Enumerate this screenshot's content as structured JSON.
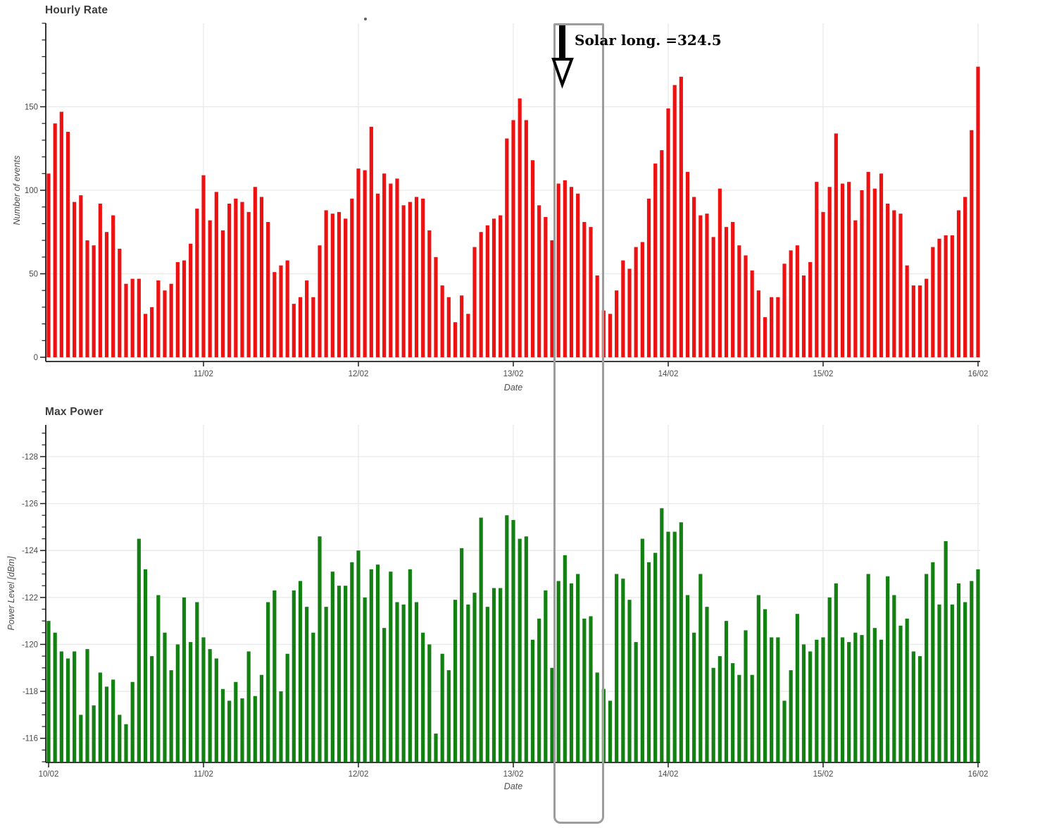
{
  "annotation": {
    "label": "Solar long. =324.5",
    "arrow_icon": "down-arrow",
    "highlight_border_color": "#9d9d9d"
  },
  "style": {
    "grid_color": "#e9e9e9",
    "axis_color": "#1f1f1f",
    "tick_text_color": "#4a4a4a"
  },
  "chart_data": [
    {
      "type": "bar",
      "title": "Hourly Rate",
      "xlabel": "Date",
      "ylabel": "Number of events",
      "bar_color": "#ee1111",
      "ylim": [
        0,
        200
      ],
      "yticks_major": [
        0,
        50,
        100,
        150
      ],
      "ytick_minor_step": 10,
      "x_tick_labels": [
        "11/02",
        "12/02",
        "13/02",
        "14/02",
        "15/02",
        "16/02"
      ],
      "x_tick_hours": [
        24,
        48,
        72,
        96,
        120,
        144
      ],
      "hours_span": 145,
      "values": [
        110,
        140,
        147,
        135,
        93,
        97,
        70,
        67,
        92,
        75,
        85,
        65,
        44,
        47,
        47,
        26,
        30,
        46,
        40,
        44,
        57,
        58,
        68,
        89,
        109,
        82,
        99,
        76,
        92,
        95,
        93,
        87,
        102,
        96,
        81,
        51,
        55,
        58,
        32,
        36,
        46,
        36,
        67,
        88,
        86,
        87,
        83,
        95,
        113,
        112,
        138,
        98,
        110,
        104,
        107,
        91,
        93,
        96,
        95,
        76,
        60,
        43,
        36,
        21,
        37,
        26,
        66,
        75,
        79,
        83,
        85,
        131,
        142,
        155,
        142,
        118,
        91,
        84,
        70,
        104,
        106,
        102,
        98,
        81,
        78,
        49,
        28,
        26,
        40,
        58,
        53,
        66,
        69,
        95,
        116,
        124,
        149,
        163,
        168,
        111,
        96,
        85,
        86,
        72,
        101,
        78,
        81,
        67,
        61,
        52,
        40,
        24,
        36,
        36,
        56,
        64,
        67,
        49,
        57,
        105,
        87,
        102,
        134,
        104,
        105,
        82,
        100,
        111,
        101,
        110,
        92,
        88,
        86,
        55,
        43,
        43,
        47,
        66,
        71,
        73,
        73,
        88,
        96,
        136,
        174
      ]
    },
    {
      "type": "bar",
      "title": "Max Power",
      "xlabel": "Date",
      "ylabel": "Power Level [dBm]",
      "bar_color": "#128112",
      "ylim": [
        -115,
        -129.35
      ],
      "yticks_major": [
        -128,
        -126,
        -124,
        -122,
        -120,
        -118,
        -116
      ],
      "ytick_minor_step": 0.5,
      "x_tick_labels": [
        "10/02",
        "11/02",
        "12/02",
        "13/02",
        "14/02",
        "15/02",
        "16/02"
      ],
      "x_tick_hours": [
        0,
        24,
        48,
        72,
        96,
        120,
        144
      ],
      "hours_span": 145,
      "values": [
        -121.0,
        -120.5,
        -119.7,
        -119.4,
        -119.7,
        -117.0,
        -119.8,
        -117.4,
        -118.8,
        -118.2,
        -118.5,
        -117.0,
        -116.6,
        -118.4,
        -124.5,
        -123.2,
        -119.5,
        -122.1,
        -120.5,
        -118.9,
        -120.0,
        -122.0,
        -120.1,
        -121.8,
        -120.3,
        -119.8,
        -119.4,
        -118.1,
        -117.6,
        -118.4,
        -117.7,
        -119.7,
        -117.8,
        -118.7,
        -121.8,
        -122.3,
        -118.0,
        -119.6,
        -122.3,
        -122.7,
        -121.6,
        -120.5,
        -124.6,
        -121.6,
        -123.1,
        -122.5,
        -122.5,
        -123.5,
        -124.0,
        -122.0,
        -123.2,
        -123.4,
        -120.7,
        -123.1,
        -121.8,
        -121.7,
        -123.2,
        -121.8,
        -120.5,
        -120.0,
        -116.2,
        -119.6,
        -118.9,
        -121.9,
        -124.1,
        -121.7,
        -122.2,
        -125.4,
        -121.6,
        -122.4,
        -122.4,
        -125.5,
        -125.3,
        -124.5,
        -124.6,
        -120.2,
        -121.1,
        -122.3,
        -119.0,
        -122.7,
        -123.8,
        -122.6,
        -123.0,
        -121.1,
        -121.2,
        -118.8,
        -118.1,
        -117.6,
        -123.0,
        -122.8,
        -121.9,
        -120.1,
        -124.5,
        -123.5,
        -123.9,
        -125.8,
        -124.8,
        -124.8,
        -125.2,
        -122.1,
        -120.5,
        -123.0,
        -121.6,
        -119.0,
        -119.5,
        -121.0,
        -119.2,
        -118.7,
        -120.6,
        -118.7,
        -122.1,
        -121.5,
        -120.3,
        -120.3,
        -117.6,
        -118.9,
        -121.3,
        -120.0,
        -119.7,
        -120.2,
        -120.3,
        -122.0,
        -122.6,
        -120.3,
        -120.1,
        -120.5,
        -120.4,
        -123.0,
        -120.7,
        -120.2,
        -122.9,
        -122.1,
        -120.8,
        -121.1,
        -119.7,
        -119.5,
        -123.0,
        -123.5,
        -121.7,
        -124.4,
        -121.7,
        -122.6,
        -121.8,
        -122.7,
        -123.2
      ]
    }
  ]
}
